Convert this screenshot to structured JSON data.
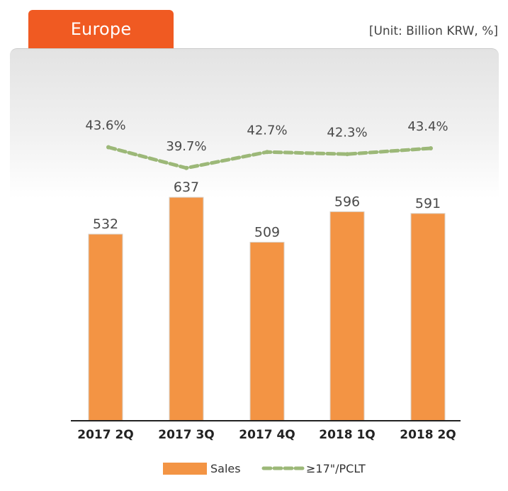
{
  "header": {
    "region_tab": "Europe",
    "unit": "[Unit: Billion KRW, %]"
  },
  "colors": {
    "tab": "#f05a22",
    "bar": "#f39444",
    "line": "#9cb878"
  },
  "chart_data": {
    "type": "bar",
    "categories": [
      "2017 2Q",
      "2017 3Q",
      "2017 4Q",
      "2018 1Q",
      "2018 2Q"
    ],
    "series": [
      {
        "name": "Sales",
        "type": "bar",
        "values": [
          532,
          637,
          509,
          596,
          591
        ],
        "labels": [
          "532",
          "637",
          "509",
          "596",
          "591"
        ]
      },
      {
        "name": "≥17\"/PCLT",
        "type": "line",
        "values": [
          43.6,
          39.7,
          42.7,
          42.3,
          43.4
        ],
        "labels": [
          "43.6%",
          "39.7%",
          "42.7%",
          "42.3%",
          "43.4%"
        ]
      }
    ],
    "title": "",
    "xlabel": "",
    "ylabel": "",
    "legend": "bottom",
    "grid": false
  }
}
